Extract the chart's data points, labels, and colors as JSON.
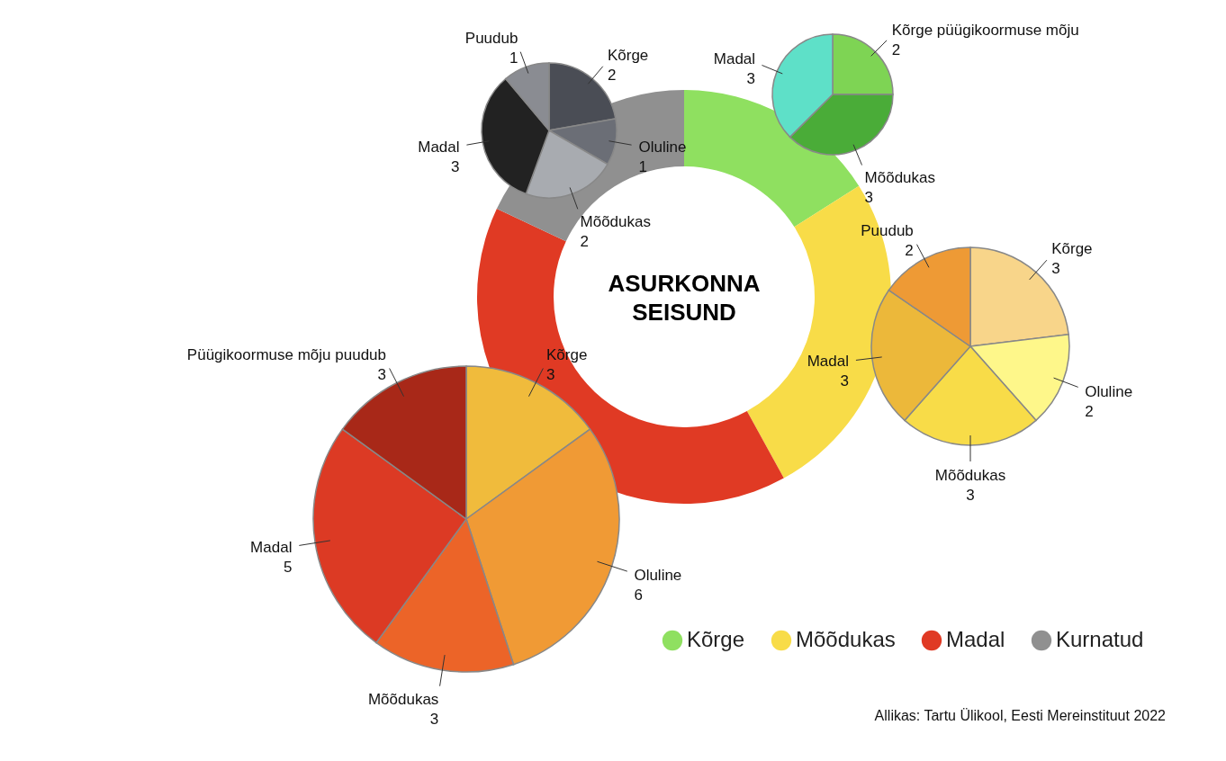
{
  "chart_data": [
    {
      "type": "donut",
      "title": "ASURKONNA SEISUND",
      "categories": [
        "Kõrge",
        "Mõõdukas",
        "Madal",
        "Kurnatud"
      ],
      "values": [
        16,
        26,
        40,
        18
      ],
      "colors": [
        "#8fe060",
        "#f8dc48",
        "#e03a24",
        "#909090"
      ],
      "legend": "bottom right",
      "annotations": [
        "Allikas: Tartu Ülikool, Eesti Mereinstituut 2022"
      ]
    },
    {
      "type": "pie",
      "categories": [
        "Kõrge",
        "Oluline",
        "Mõõdukas",
        "Madal",
        "Puudub"
      ],
      "values": [
        2,
        1,
        2,
        3,
        1
      ],
      "colors": [
        "#4a4d55",
        "#6b6e76",
        "#a8abb0",
        "#222222",
        "#8a8c92"
      ],
      "data_labels": true
    },
    {
      "type": "pie",
      "categories": [
        "Kõrge püügikoormuse mõju",
        "Mõõdukas",
        "Madal"
      ],
      "values": [
        2,
        3,
        3
      ],
      "colors": [
        "#7ed454",
        "#4aac38",
        "#5ee0c8"
      ],
      "data_labels": true
    },
    {
      "type": "pie",
      "categories": [
        "Kõrge",
        "Oluline",
        "Mõõdukas",
        "Madal",
        "Puudub"
      ],
      "values": [
        3,
        2,
        3,
        3,
        2
      ],
      "colors": [
        "#f8d58a",
        "#fef78a",
        "#f8dc48",
        "#ecb83a",
        "#ee9a35"
      ],
      "data_labels": true
    },
    {
      "type": "pie",
      "categories": [
        "Kõrge",
        "Oluline",
        "Mõõdukas",
        "Madal",
        "Püügikoormuse mõju puudub"
      ],
      "values": [
        3,
        6,
        3,
        5,
        3
      ],
      "colors": [
        "#f0bb3c",
        "#f09a35",
        "#ec6428",
        "#dc3a24",
        "#a82818"
      ],
      "data_labels": true
    }
  ]
}
